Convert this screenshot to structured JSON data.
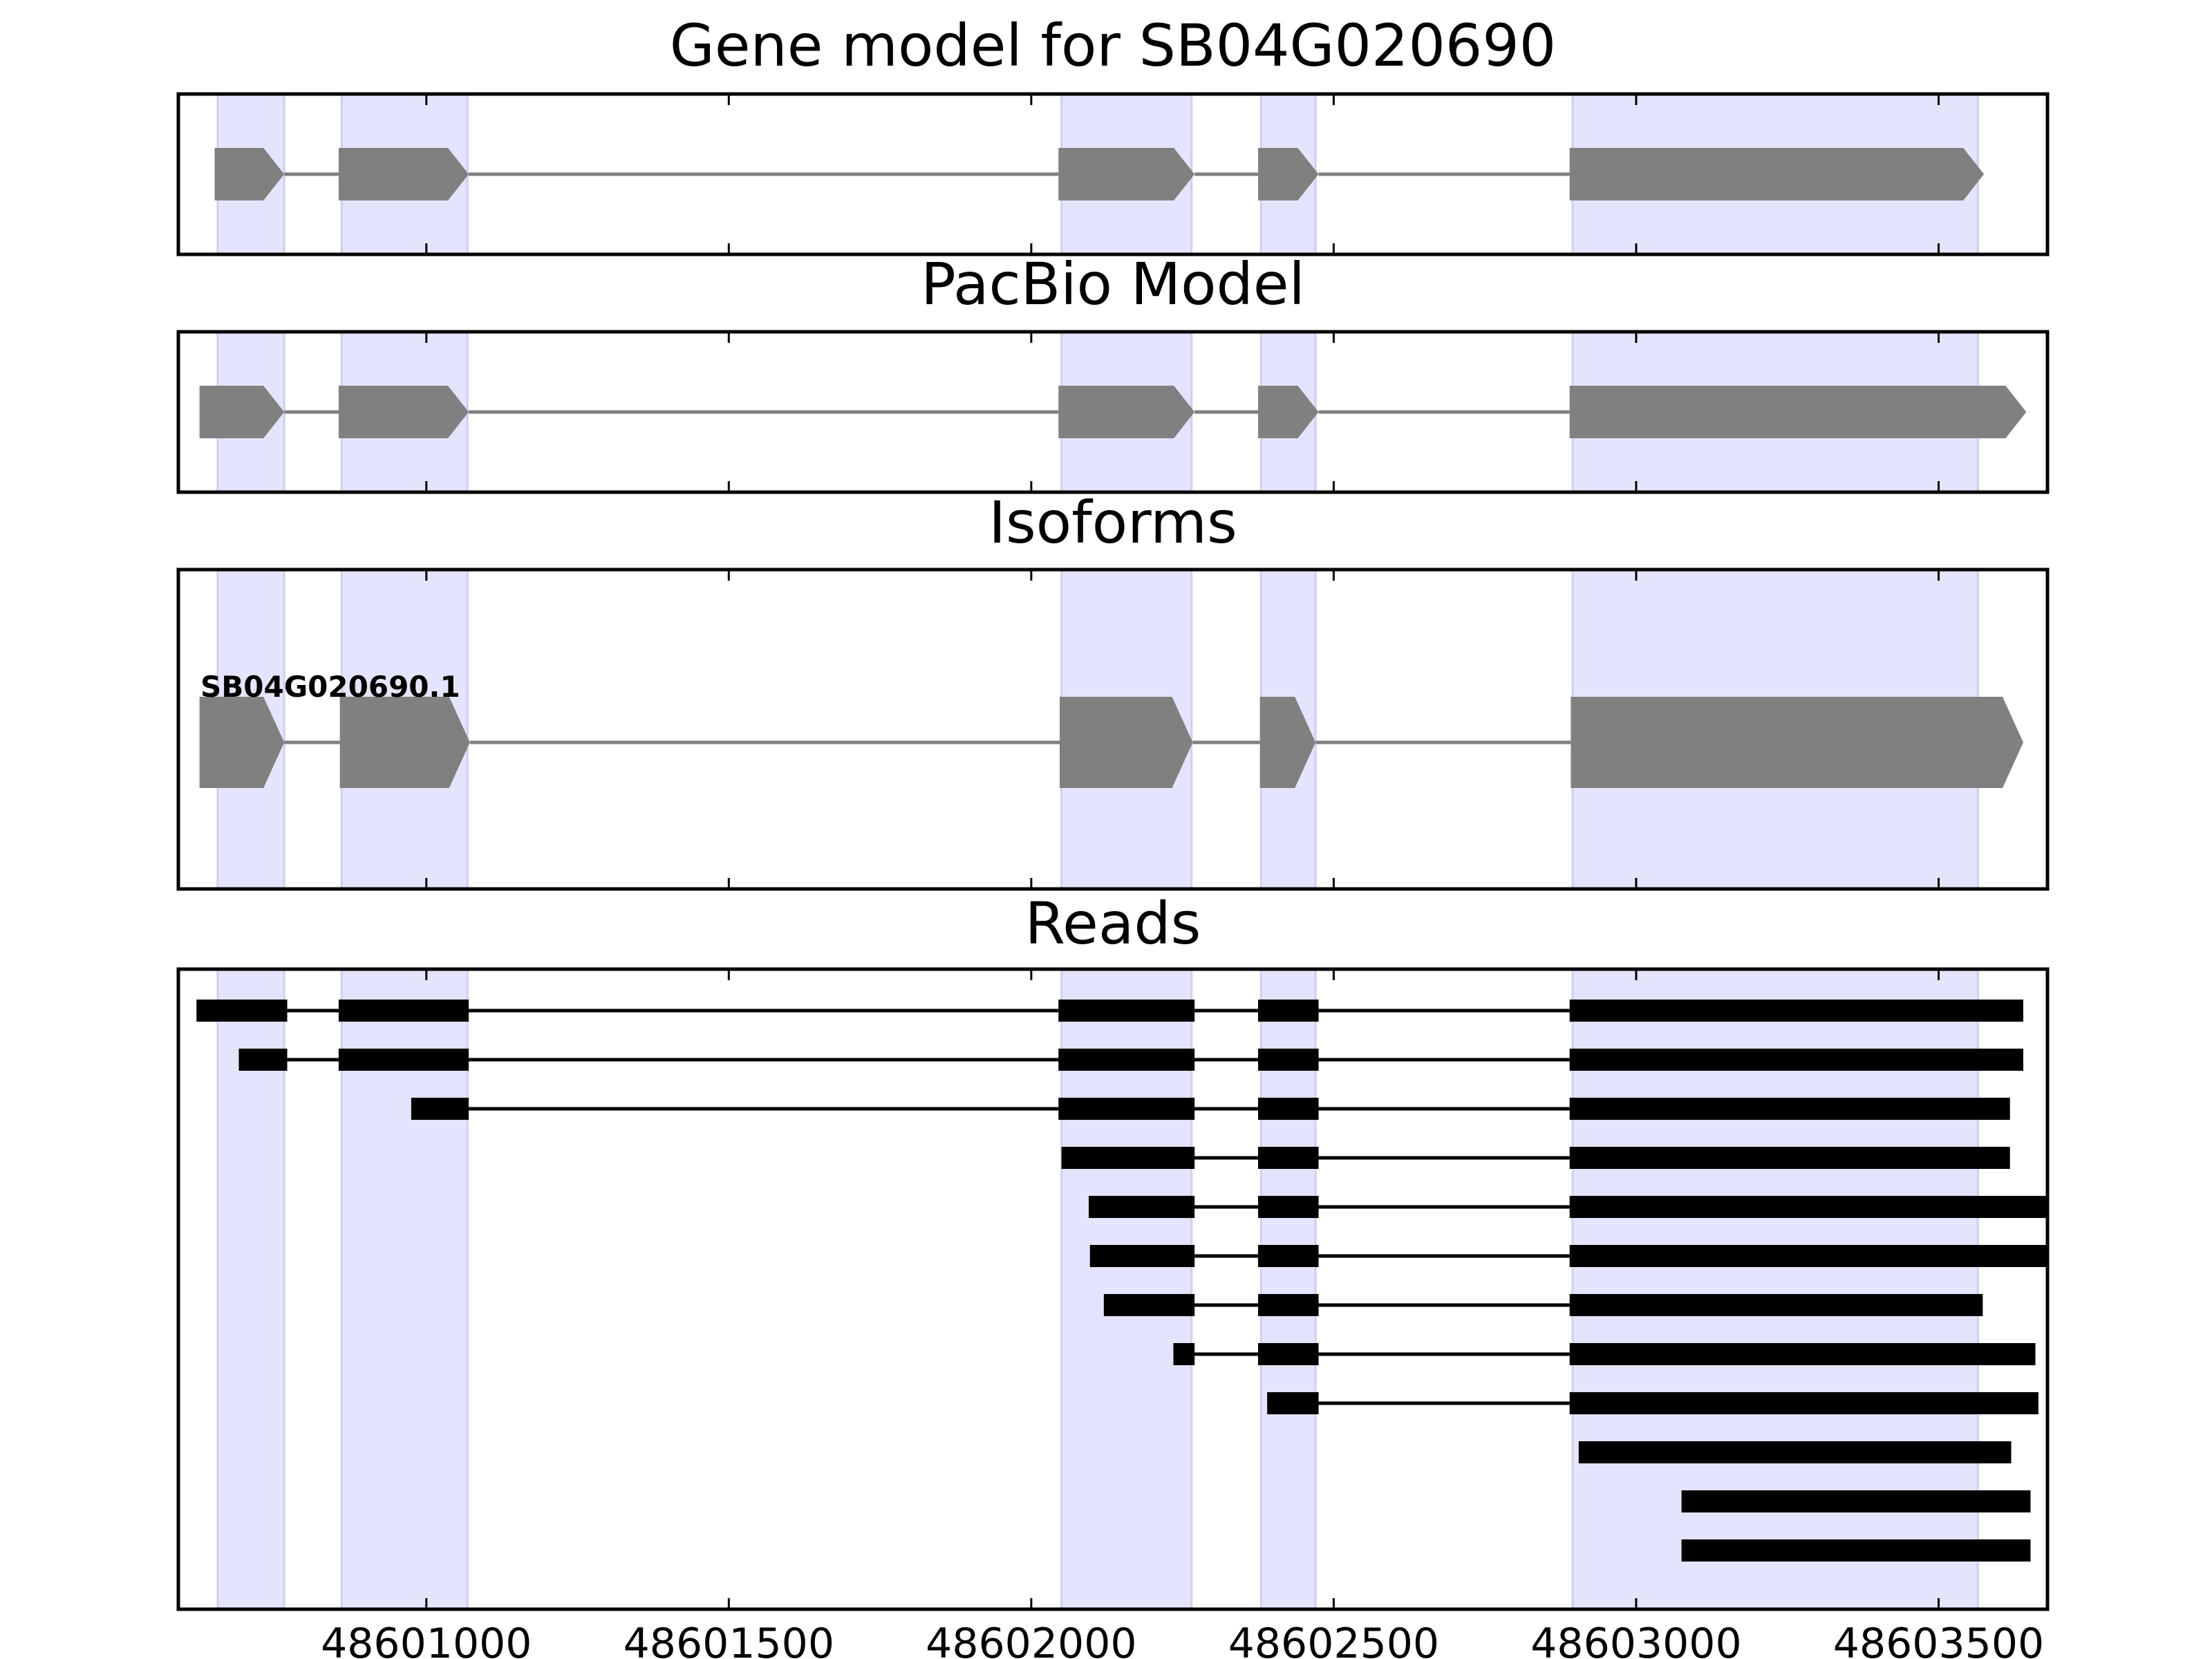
{
  "panels": [
    {
      "id": "gene_model",
      "title": "Gene model for SB04G020690"
    },
    {
      "id": "pacbio_model",
      "title": "PacBio Model"
    },
    {
      "id": "isoforms",
      "title": "Isoforms",
      "isoform_label": "SB04G020690.1"
    },
    {
      "id": "reads",
      "title": "Reads"
    }
  ],
  "chart_data": {
    "type": "gene-structure",
    "xlim": [
      48600590,
      48603680
    ],
    "xticks": [
      48601000,
      48601500,
      48602000,
      48602500,
      48603000,
      48603500
    ],
    "x_tick_labels": [
      "48601000",
      "48601500",
      "48602000",
      "48602500",
      "48603000",
      "48603500"
    ],
    "highlight_regions": [
      [
        48600655,
        48600765
      ],
      [
        48600860,
        48601068
      ],
      [
        48602050,
        48602265
      ],
      [
        48602380,
        48602470
      ],
      [
        48602895,
        48603565
      ]
    ],
    "gene_model": {
      "exons": [
        [
          48600650,
          48600765
        ],
        [
          48600855,
          48601070
        ],
        [
          48602045,
          48602270
        ],
        [
          48602375,
          48602475
        ],
        [
          48602890,
          48603575
        ]
      ]
    },
    "pacbio_model": {
      "exons": [
        [
          48600625,
          48600765
        ],
        [
          48600855,
          48601070
        ],
        [
          48602045,
          48602270
        ],
        [
          48602375,
          48602475
        ],
        [
          48602890,
          48603645
        ]
      ]
    },
    "isoforms": [
      {
        "name": "SB04G020690.1",
        "exons": [
          [
            48600625,
            48600765
          ],
          [
            48600857,
            48601072
          ],
          [
            48602047,
            48602267
          ],
          [
            48602378,
            48602470
          ],
          [
            48602892,
            48603640
          ]
        ]
      }
    ],
    "reads": [
      {
        "exons": [
          [
            48600620,
            48600770
          ],
          [
            48600855,
            48601070
          ],
          [
            48602045,
            48602270
          ],
          [
            48602375,
            48602475
          ],
          [
            48602890,
            48603640
          ]
        ]
      },
      {
        "exons": [
          [
            48600690,
            48600770
          ],
          [
            48600855,
            48601070
          ],
          [
            48602045,
            48602270
          ],
          [
            48602375,
            48602475
          ],
          [
            48602890,
            48603640
          ]
        ]
      },
      {
        "exons": [
          [
            48600975,
            48601070
          ],
          [
            48602045,
            48602270
          ],
          [
            48602375,
            48602475
          ],
          [
            48602890,
            48603618
          ]
        ]
      },
      {
        "exons": [
          [
            48602050,
            48602270
          ],
          [
            48602375,
            48602475
          ],
          [
            48602890,
            48603618
          ]
        ]
      },
      {
        "exons": [
          [
            48602095,
            48602270
          ],
          [
            48602375,
            48602475
          ],
          [
            48602890,
            48603680
          ]
        ]
      },
      {
        "exons": [
          [
            48602097,
            48602270
          ],
          [
            48602375,
            48602475
          ],
          [
            48602890,
            48603680
          ]
        ]
      },
      {
        "exons": [
          [
            48602120,
            48602270
          ],
          [
            48602375,
            48602475
          ],
          [
            48602890,
            48603573
          ]
        ]
      },
      {
        "exons": [
          [
            48602235,
            48602270
          ],
          [
            48602375,
            48602475
          ],
          [
            48602890,
            48603660
          ]
        ]
      },
      {
        "exons": [
          [
            48602390,
            48602475
          ],
          [
            48602890,
            48603665
          ]
        ]
      },
      {
        "exons": [
          [
            48602905,
            48603620
          ]
        ]
      },
      {
        "exons": [
          [
            48603075,
            48603652
          ]
        ]
      },
      {
        "exons": [
          [
            48603075,
            48603652
          ]
        ]
      }
    ]
  },
  "colors": {
    "highlight": "#e4e4fc",
    "highlight_edge": "#cfcfef",
    "exon_fill": "#808080",
    "intron_line": "#808080",
    "read_fill": "#000000",
    "frame": "#000000",
    "text": "#000000"
  }
}
